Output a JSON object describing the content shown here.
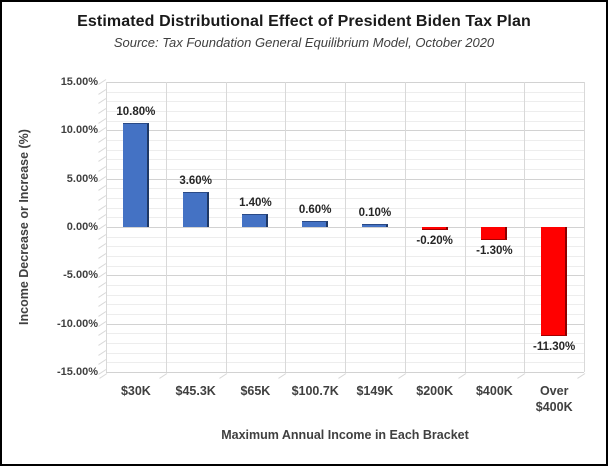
{
  "chart_data": {
    "type": "bar",
    "title": "Estimated Distributional Effect of President Biden Tax Plan",
    "subtitle": "Source: Tax Foundation  General Equilibrium Model, October 2020",
    "xlabel": "Maximum Annual Income in Each Bracket",
    "ylabel": "Income Decrease or Increase (%)",
    "categories": [
      "$30K",
      "$45.3K",
      "$65K",
      "$100.7K",
      "$149K",
      "$200K",
      "$400K",
      "Over $400K"
    ],
    "values": [
      10.8,
      3.6,
      1.4,
      0.6,
      0.1,
      -0.2,
      -1.3,
      -11.3
    ],
    "data_labels": [
      "10.80%",
      "3.60%",
      "1.40%",
      "0.60%",
      "0.10%",
      "-0.20%",
      "-1.30%",
      "-11.30%"
    ],
    "ylim": [
      -15,
      15
    ],
    "ytick_major_step": 5,
    "ytick_minor_step": 1,
    "ytick_labels": [
      "15.00%",
      "10.00%",
      "5.00%",
      "0.00%",
      "-5.00%",
      "-10.00%",
      "-15.00%"
    ],
    "grid": "horizontal major+minor, vertical major at category boundaries",
    "legend": "none",
    "colors": {
      "positive_bar": "#4472C4",
      "positive_bar_edge": "#1F3864",
      "negative_bar": "#FF0000",
      "negative_bar_edge": "#8B0000",
      "gridline_major": "#d2d2d2",
      "gridline_minor": "#ededed",
      "axis_text": "#404040",
      "frame_border": "#000000"
    }
  }
}
